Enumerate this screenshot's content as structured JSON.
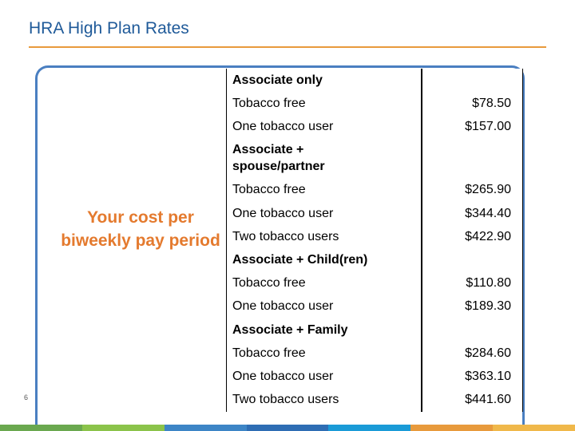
{
  "title": "HRA High Plan Rates",
  "side_label": "Your cost per biweekly pay period",
  "page_number": "6",
  "colors": {
    "title": "#1f5a99",
    "accent": "#e89a3c",
    "side_label": "#e47a2e",
    "frame": "#4a7fc1",
    "strip": [
      "#6aa84f",
      "#8bc34a",
      "#3d85c6",
      "#2e6db4",
      "#1a9bd7",
      "#e89a3c",
      "#f0b84a"
    ]
  },
  "rows": [
    {
      "label": "Associate only",
      "group": true
    },
    {
      "label": "Tobacco free",
      "value": "$78.50"
    },
    {
      "label": "One tobacco user",
      "value": "$157.00"
    },
    {
      "label": "Associate + spouse/partner",
      "group": true
    },
    {
      "label": "Tobacco free",
      "value": "$265.90"
    },
    {
      "label": "One tobacco user",
      "value": "$344.40"
    },
    {
      "label": "Two tobacco users",
      "value": "$422.90"
    },
    {
      "label": "Associate + Child(ren)",
      "group": true
    },
    {
      "label": "Tobacco free",
      "value": "$110.80"
    },
    {
      "label": "One tobacco user",
      "value": "$189.30"
    },
    {
      "label": "Associate + Family",
      "group": true
    },
    {
      "label": "Tobacco free",
      "value": "$284.60"
    },
    {
      "label": "One tobacco user",
      "value": "$363.10"
    },
    {
      "label": "Two tobacco users",
      "value": "$441.60"
    }
  ]
}
